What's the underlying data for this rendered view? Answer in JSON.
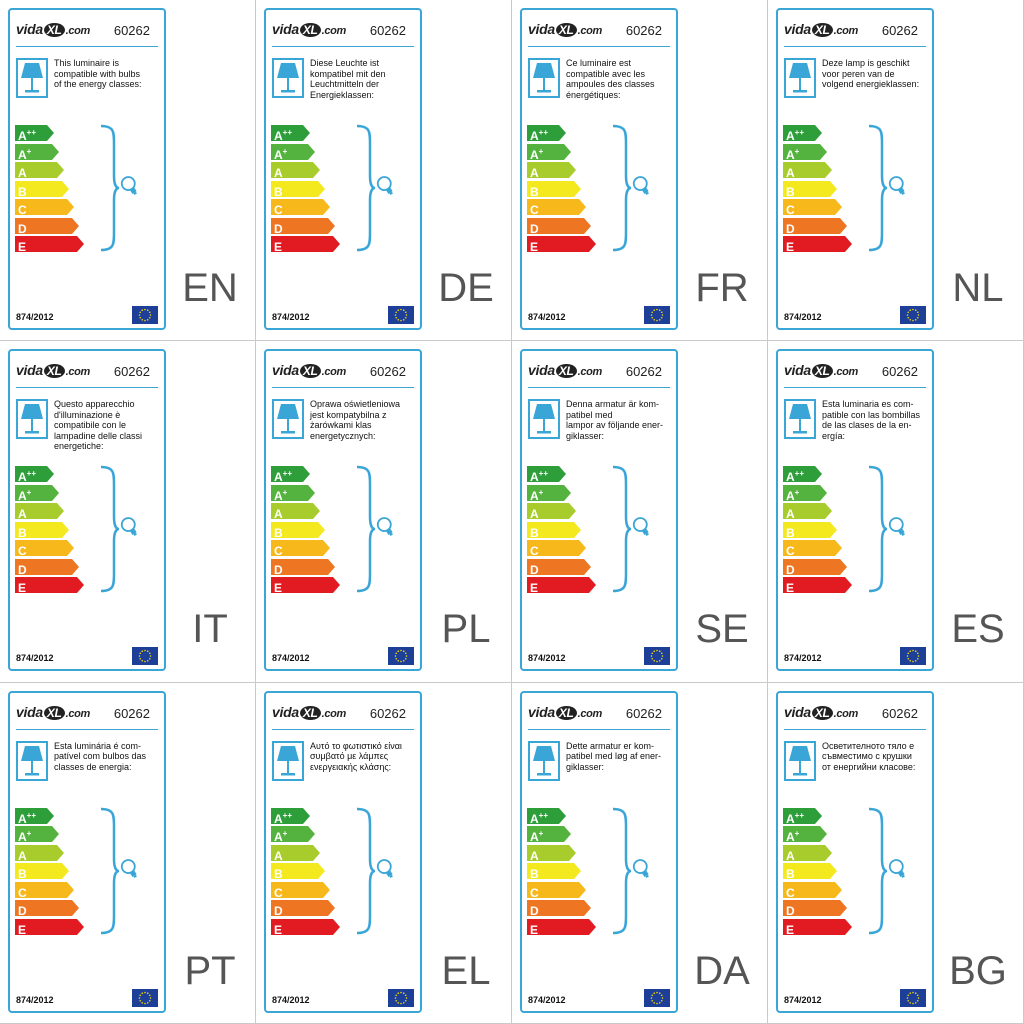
{
  "brand": {
    "name_left": "vida",
    "name_mark": "XL",
    "name_right": ".com"
  },
  "product_code": "60262",
  "regulation": "874/2012",
  "energy_classes": [
    {
      "letter": "A",
      "sup": "++",
      "color": "#2e9e3a"
    },
    {
      "letter": "A",
      "sup": "+",
      "color": "#54b33e"
    },
    {
      "letter": "A",
      "sup": "",
      "color": "#a8cc2c"
    },
    {
      "letter": "B",
      "sup": "",
      "color": "#f3e91e"
    },
    {
      "letter": "C",
      "sup": "",
      "color": "#f7b81b"
    },
    {
      "letter": "D",
      "sup": "",
      "color": "#ee7623"
    },
    {
      "letter": "E",
      "sup": "",
      "color": "#e21b22"
    }
  ],
  "colors": {
    "accent": "#3aa6d8",
    "eu_blue": "#1e3f97",
    "eu_star": "#f5d90a",
    "language_code": "#555555"
  },
  "icons": {
    "lamp": "table-lamp-icon",
    "bulb": "light-bulb-icon",
    "flag": "eu-flag-icon"
  },
  "labels": [
    {
      "lang": "EN",
      "text": "This luminaire is\ncompatible with bulbs\nof the energy classes:"
    },
    {
      "lang": "DE",
      "text": "Diese Leuchte ist\nkompatibel mit den\nLeuchtmitteln der\nEnergieklassen:"
    },
    {
      "lang": "FR",
      "text": "Ce luminaire est\ncompatible avec les\nampoules des classes\nénergétiques:"
    },
    {
      "lang": "NL",
      "text": "Deze lamp is geschikt\nvoor peren van de\nvolgend energieklassen:"
    },
    {
      "lang": "IT",
      "text": "Questo apparecchio\nd'illuminazione è\ncompatibile con le\nlampadine delle classi\nenergetiche:"
    },
    {
      "lang": "PL",
      "text": "Oprawa oświetleniowa\njest kompatybilna z\nżarówkami klas\nenergetycznych:"
    },
    {
      "lang": "SE",
      "text": "Denna armatur är kom-\npatibel med\nlampor av följande ener-\ngiklasser:"
    },
    {
      "lang": "ES",
      "text": "Esta luminaria es com-\npatible con las bombillas\nde las clases de la en-\nergía:"
    },
    {
      "lang": "PT",
      "text": "Esta luminária é com-\npatível com bulbos das\nclasses de energia:"
    },
    {
      "lang": "EL",
      "text": "Αυτό το φωτιστικό είναι\nσυμβατό με λάμπες\nενεργειακής κλάσης:"
    },
    {
      "lang": "DA",
      "text": "Dette armatur er kom-\npatibel med løg af ener-\ngiklasser:"
    },
    {
      "lang": "BG",
      "text": "Осветителното тяло е\nсъвместимо с крушки\nот енергийни класове:"
    }
  ]
}
